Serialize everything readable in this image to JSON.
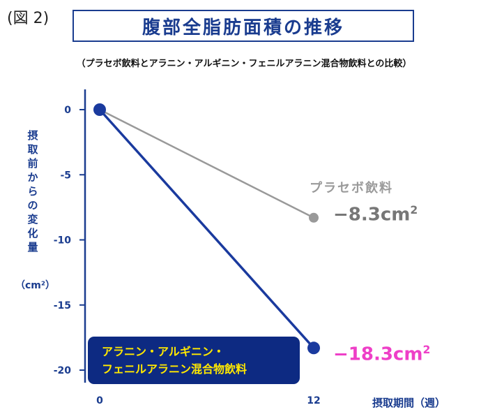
{
  "figure_label": "(図 2)",
  "title": "腹部全脂肪面積の推移",
  "subtitle": "（プラセボ飲料とアラニン・アルギニン・フェニルアラニン混合物飲料との比較）",
  "ylabel": "摂取前からの変化量",
  "ylabel_unit": "（cm²）",
  "xlabel": "摂取期間（週）",
  "annotations": {
    "placebo_name": "プラセボ飲料",
    "placebo_value": "−8.3cm",
    "active_value": "−18.3cm",
    "unit_superscript": "2"
  },
  "legend": {
    "line1": "アラニン・アルギニン・",
    "line2": "フェニルアラニン混合物飲料"
  },
  "colors": {
    "axis": "#1a3c8f",
    "placebo": "#999999",
    "active": "#1a3a9e",
    "active_value_text": "#ee3fc7",
    "legend_bg": "#0d2a82",
    "legend_text": "#ffe800"
  },
  "chart_data": {
    "type": "line",
    "x": [
      0,
      12
    ],
    "xticks": [
      "0",
      "12"
    ],
    "ylim": [
      -20,
      0
    ],
    "yticks": [
      0,
      -5,
      -10,
      -15,
      -20
    ],
    "series": [
      {
        "name": "プラセボ飲料",
        "values": [
          0,
          -8.3
        ],
        "color": "#999999"
      },
      {
        "name": "アラニン・アルギニン・フェニルアラニン混合物飲料",
        "values": [
          0,
          -18.3
        ],
        "color": "#1a3a9e"
      }
    ]
  }
}
